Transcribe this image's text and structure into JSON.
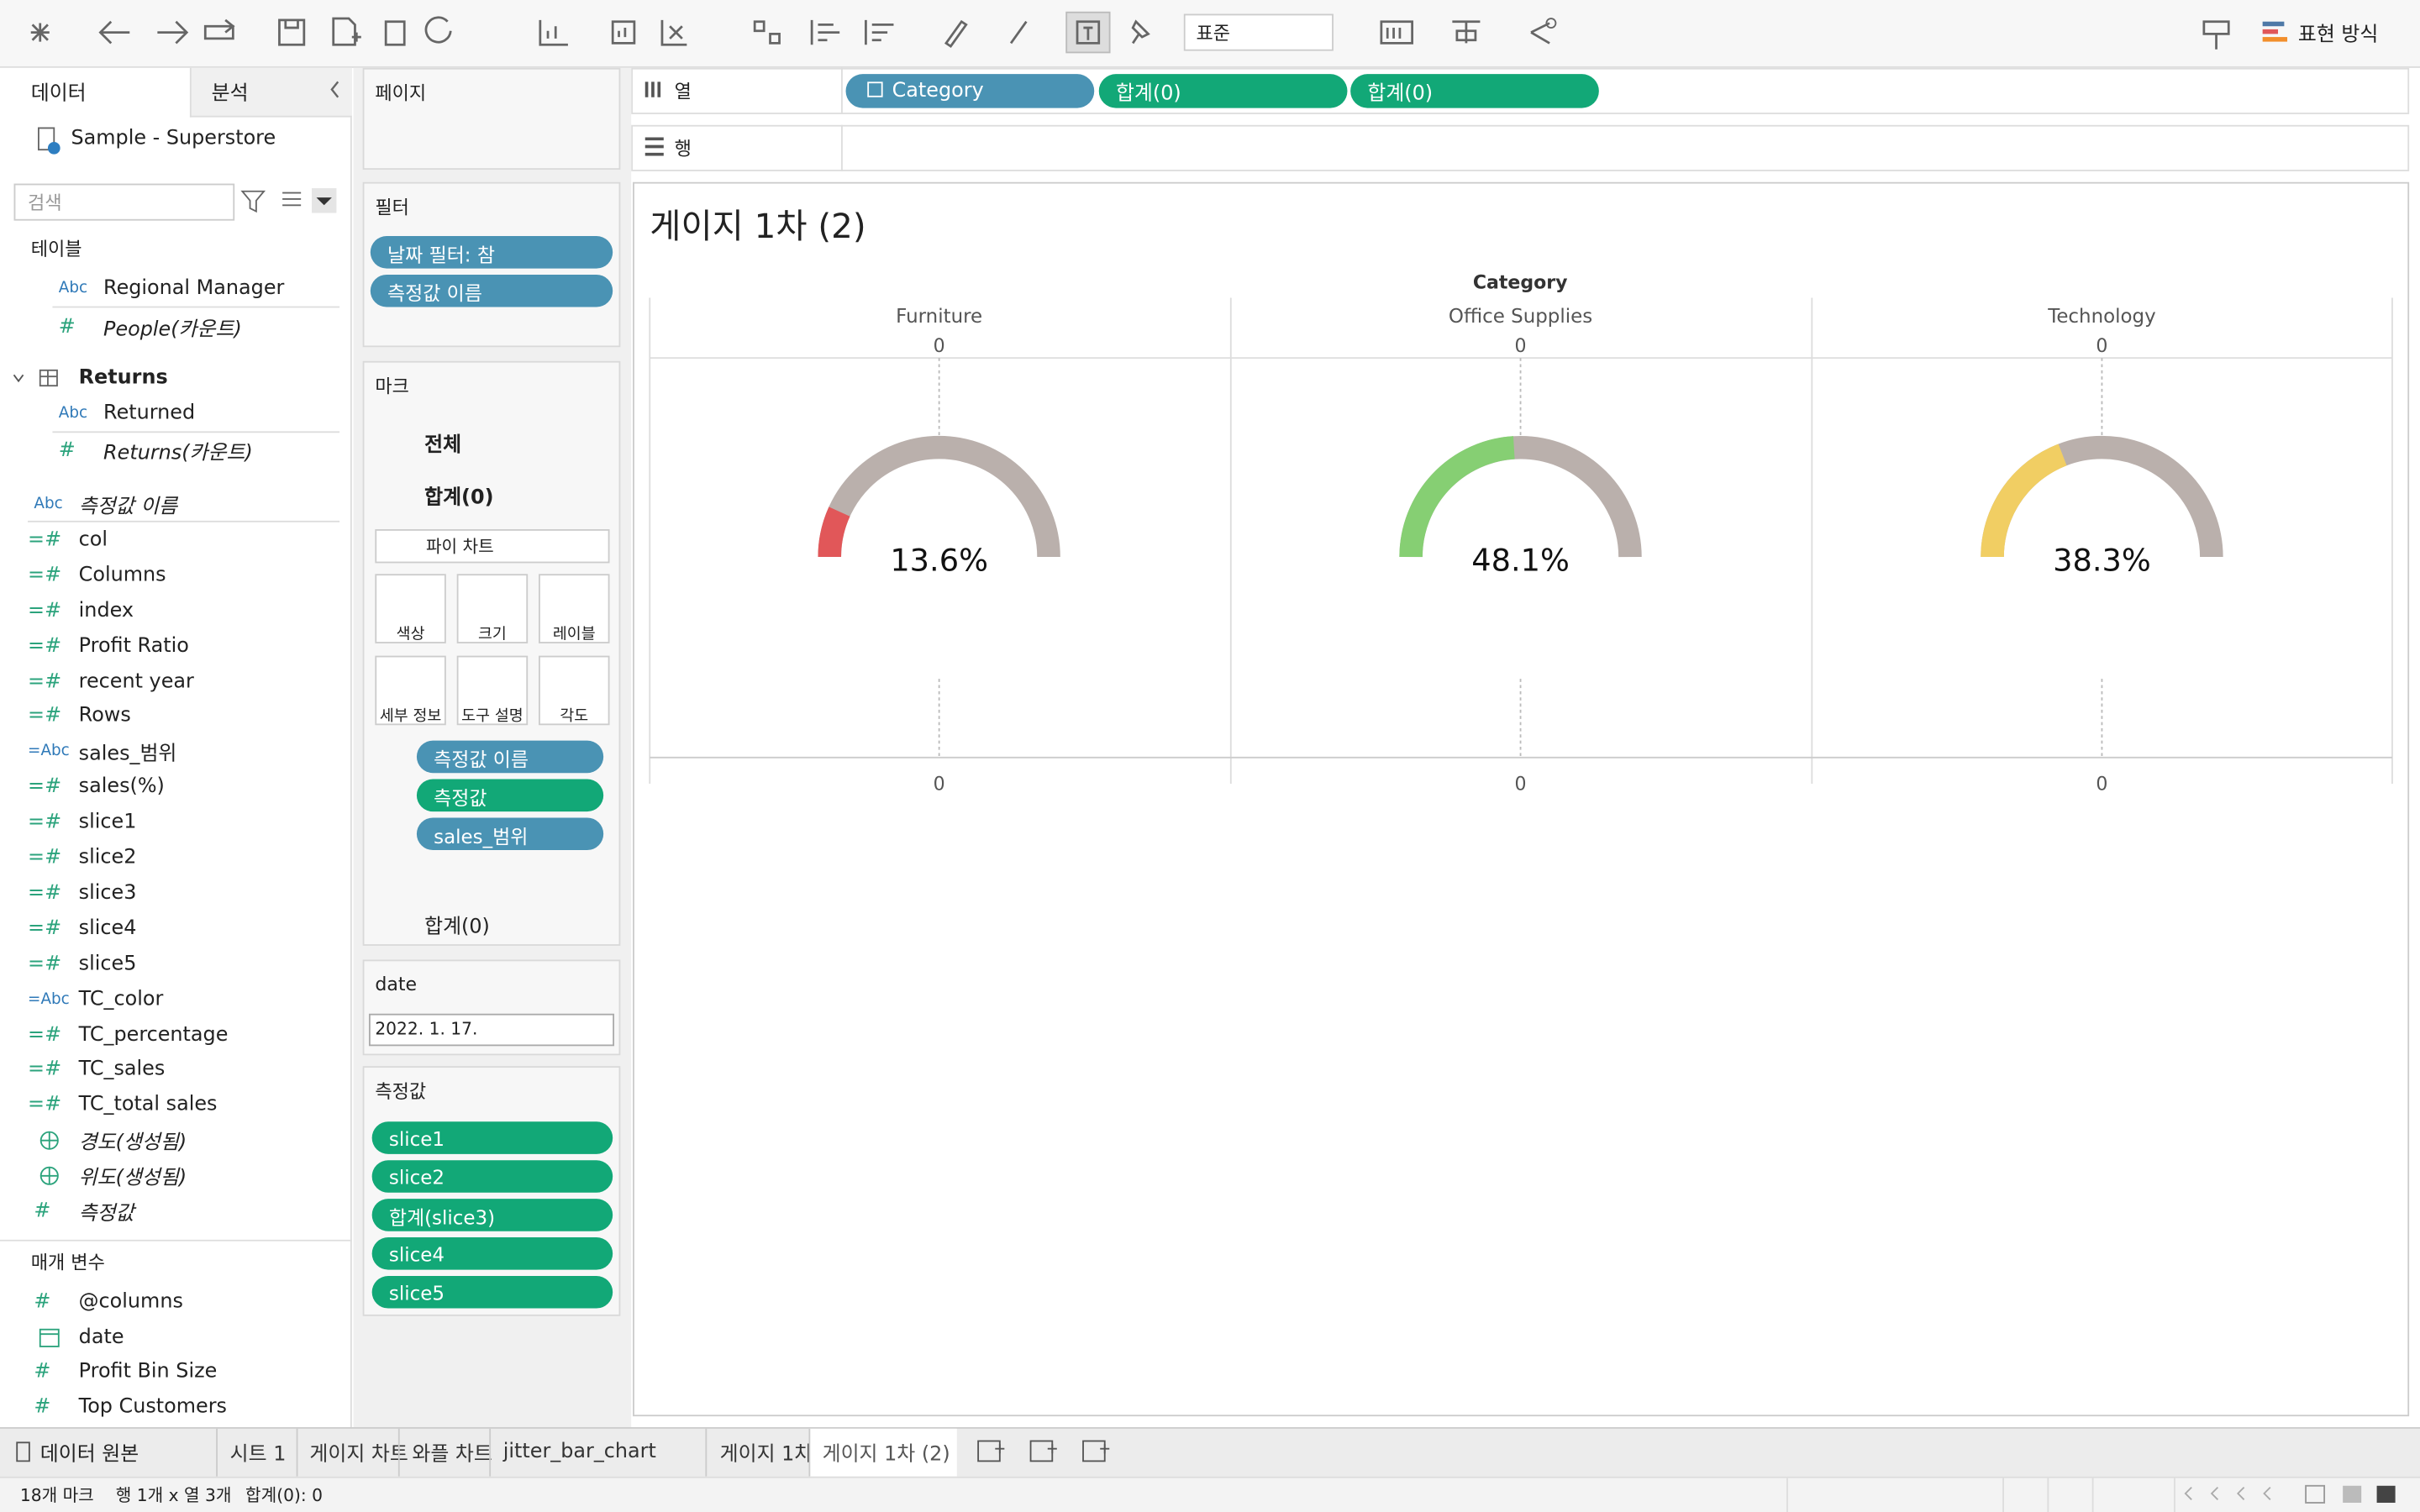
{
  "toolbar": {
    "layout_dropdown": "표준",
    "show_me": "표현 방식"
  },
  "data_pane": {
    "tabs": [
      "데이터",
      "분석"
    ],
    "datasource": "Sample - Superstore",
    "search_placeholder": "검색",
    "tables_label": "테이블",
    "tables": [
      {
        "icon": "Abc",
        "name": "Regional Manager"
      },
      {
        "icon": "#",
        "name": "People(카운트)",
        "italic": true
      }
    ],
    "returns": {
      "name": "Returns",
      "fields": [
        {
          "icon": "Abc",
          "name": "Returned"
        },
        {
          "icon": "#",
          "name": "Returns(카운트)",
          "italic": true
        }
      ]
    },
    "fields": [
      {
        "icon": "Abc",
        "name": "측정값 이름",
        "italic": true
      },
      {
        "icon": "=#",
        "name": "col"
      },
      {
        "icon": "=#",
        "name": "Columns"
      },
      {
        "icon": "=#",
        "name": "index"
      },
      {
        "icon": "=#",
        "name": "Profit Ratio"
      },
      {
        "icon": "=#",
        "name": "recent year"
      },
      {
        "icon": "=#",
        "name": "Rows"
      },
      {
        "icon": "=Abc",
        "name": "sales_범위"
      },
      {
        "icon": "=#",
        "name": "sales(%)"
      },
      {
        "icon": "=#",
        "name": "slice1"
      },
      {
        "icon": "=#",
        "name": "slice2"
      },
      {
        "icon": "=#",
        "name": "slice3"
      },
      {
        "icon": "=#",
        "name": "slice4"
      },
      {
        "icon": "=#",
        "name": "slice5"
      },
      {
        "icon": "=Abc",
        "name": "TC_color"
      },
      {
        "icon": "=#",
        "name": "TC_percentage"
      },
      {
        "icon": "=#",
        "name": "TC_sales"
      },
      {
        "icon": "=#",
        "name": "TC_total sales"
      },
      {
        "glyph": "globe",
        "name": "경도(생성됨)",
        "italic": true
      },
      {
        "glyph": "globe",
        "name": "위도(생성됨)",
        "italic": true
      },
      {
        "icon": "#",
        "name": "측정값",
        "italic": true
      }
    ],
    "parameters_label": "매개 변수",
    "parameters": [
      {
        "icon": "#",
        "name": "@columns"
      },
      {
        "glyph": "calendar",
        "name": "date"
      },
      {
        "icon": "#",
        "name": "Profit Bin Size"
      },
      {
        "icon": "#",
        "name": "Top Customers"
      }
    ]
  },
  "pages_card": {
    "title": "페이지"
  },
  "filters_card": {
    "title": "필터",
    "pills": [
      "날짜 필터: 참",
      "측정값 이름"
    ]
  },
  "marks_card": {
    "title": "마크",
    "all": "전체",
    "sum_section": "합계(0)",
    "mark_type": "파이 차트",
    "buttons": [
      "색상",
      "크기",
      "레이블",
      "세부 정보",
      "도구 설명",
      "각도"
    ],
    "pills": [
      {
        "text": "측정값 이름",
        "color": "#4a93b4",
        "icon": "color"
      },
      {
        "text": "측정값",
        "color": "#12a877",
        "icon": "angle"
      },
      {
        "text": "sales_범위",
        "color": "#4a93b4",
        "icon": "color",
        "delta": true
      }
    ],
    "sum_section_2": "합계(0)"
  },
  "date_card": {
    "title": "date",
    "value": "2022. 1. 17."
  },
  "measure_values_card": {
    "title": "측정값",
    "color": "#12a877",
    "pills": [
      {
        "text": "slice1",
        "delta": true
      },
      {
        "text": "slice2",
        "delta": true
      },
      {
        "text": "합계(slice3)"
      },
      {
        "text": "slice4",
        "delta": true
      },
      {
        "text": "slice5",
        "delta": true
      }
    ]
  },
  "columns_shelf": {
    "label": "열",
    "pills": [
      {
        "text": "Category",
        "color": "#4a93b4",
        "expand": true
      },
      {
        "text": "합계(0)",
        "color": "#12a877"
      },
      {
        "text": "합계(0)",
        "color": "#12a877"
      }
    ]
  },
  "rows_shelf": {
    "label": "행"
  },
  "view": {
    "title": "게이지 1차 (2)",
    "header": "Category",
    "track_color": "#bab0ac",
    "columns": [
      {
        "name": "Furniture",
        "axis_top": 0,
        "axis_bottom": 0,
        "value": 13.6,
        "value_label": "13.6%",
        "color": "#e15759"
      },
      {
        "name": "Office Supplies",
        "axis_top": 0,
        "axis_bottom": 0,
        "value": 48.1,
        "value_label": "48.1%",
        "color": "#86cf73"
      },
      {
        "name": "Technology",
        "axis_top": 0,
        "axis_bottom": 0,
        "value": 38.3,
        "value_label": "38.3%",
        "color": "#f1ce63"
      }
    ]
  },
  "sheet_tabs": {
    "datasource": "데이터 원본",
    "tabs": [
      "시트 1",
      "게이지 차트",
      "와플 차트",
      "jitter_bar_chart",
      "게이지 1차",
      "게이지 1차 (2)"
    ],
    "active": 5
  },
  "status_bar": [
    "18개 마크",
    "행 1개 x 열 3개",
    "합계(0): 0"
  ]
}
